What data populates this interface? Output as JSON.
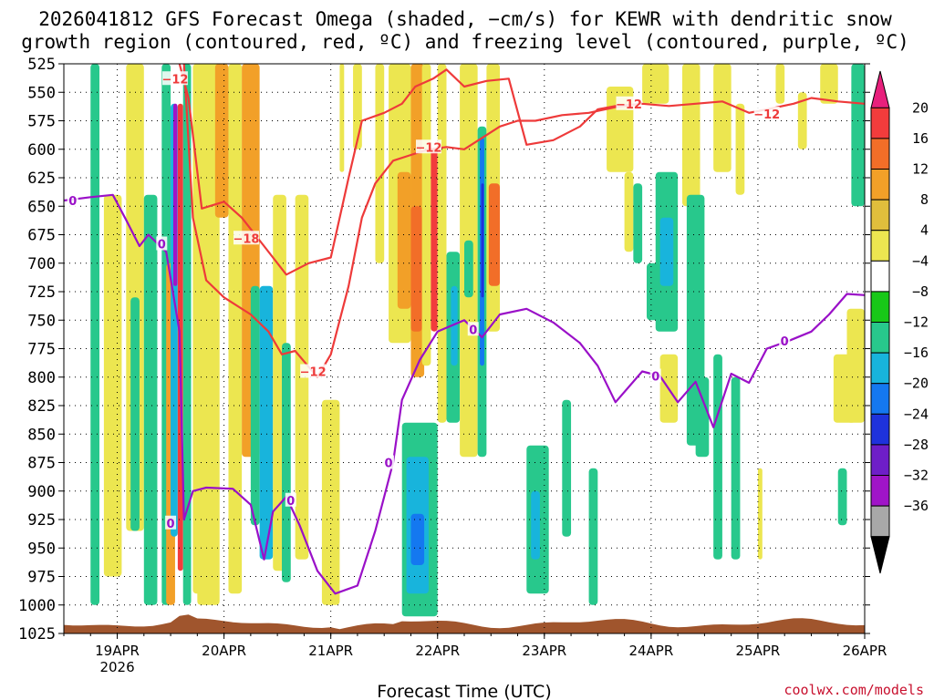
{
  "chart_data": {
    "type": "heatmap",
    "title_line1": "2026041812 GFS Forecast Omega (shaded, −cm/s) for KEWR with dendritic snow",
    "title_line2": "growth region (contoured, red, ºC) and freezing level (contoured, purple, ºC)",
    "xlabel": "Forecast Time (UTC)",
    "credit": "coolwx.com/models",
    "y_axis": {
      "variable": "pressure (hPa)",
      "ylim": [
        1025,
        525
      ],
      "ticks": [
        525,
        550,
        575,
        600,
        625,
        650,
        675,
        700,
        725,
        750,
        775,
        800,
        825,
        850,
        875,
        900,
        925,
        950,
        975,
        1000,
        1025
      ]
    },
    "x_axis": {
      "unit": "hours from 2026-04-18 12Z",
      "xlim": [
        0,
        180
      ],
      "ticks": [
        {
          "hour": 12,
          "label": "19APR",
          "sublabel": "2026"
        },
        {
          "hour": 36,
          "label": "20APR",
          "sublabel": ""
        },
        {
          "hour": 60,
          "label": "21APR",
          "sublabel": ""
        },
        {
          "hour": 84,
          "label": "22APR",
          "sublabel": ""
        },
        {
          "hour": 108,
          "label": "23APR",
          "sublabel": ""
        },
        {
          "hour": 132,
          "label": "24APR",
          "sublabel": ""
        },
        {
          "hour": 156,
          "label": "25APR",
          "sublabel": ""
        },
        {
          "hour": 180,
          "label": "26APR",
          "sublabel": ""
        }
      ]
    },
    "colorbar": {
      "labels": [
        "20",
        "16",
        "12",
        "8",
        "4",
        "−4",
        "−8",
        "−12",
        "−16",
        "−20",
        "−24",
        "−28",
        "−32",
        "−36"
      ],
      "colors": [
        "#e8207c",
        "#f23c3c",
        "#f26e28",
        "#f2a028",
        "#e0be3c",
        "#ece650",
        "#ffffff",
        "#18c818",
        "#28c88c",
        "#18b4dc",
        "#1478f0",
        "#1e32dc",
        "#6e1ec8",
        "#a014c8",
        "#a8a8a8",
        "#000000"
      ]
    },
    "freezing_level_0C": [
      [
        0,
        645
      ],
      [
        6,
        642
      ],
      [
        11,
        640
      ],
      [
        14,
        662
      ],
      [
        17,
        685
      ],
      [
        19,
        675
      ],
      [
        23,
        690
      ],
      [
        26,
        760
      ],
      [
        27,
        925
      ],
      [
        29,
        900
      ],
      [
        32,
        897
      ],
      [
        38,
        898
      ],
      [
        42,
        912
      ],
      [
        45,
        960
      ],
      [
        47,
        918
      ],
      [
        50,
        905
      ],
      [
        53,
        930
      ],
      [
        57,
        970
      ],
      [
        61,
        990
      ],
      [
        66,
        983
      ],
      [
        70,
        935
      ],
      [
        74,
        875
      ],
      [
        76,
        820
      ],
      [
        80,
        785
      ],
      [
        84,
        760
      ],
      [
        90,
        750
      ],
      [
        94,
        765
      ],
      [
        98,
        745
      ],
      [
        104,
        740
      ],
      [
        110,
        752
      ],
      [
        116,
        770
      ],
      [
        120,
        790
      ],
      [
        124,
        822
      ],
      [
        130,
        795
      ],
      [
        134,
        799
      ],
      [
        138,
        822
      ],
      [
        142,
        804
      ],
      [
        146,
        844
      ],
      [
        150,
        797
      ],
      [
        154,
        805
      ],
      [
        158,
        775
      ],
      [
        163,
        768
      ],
      [
        168,
        760
      ],
      [
        172,
        745
      ],
      [
        176,
        727
      ],
      [
        180,
        728
      ]
    ],
    "dgz_-12C_upper": [
      [
        26,
        525
      ],
      [
        28,
        555
      ],
      [
        31,
        652
      ],
      [
        36,
        646
      ],
      [
        40,
        660
      ],
      [
        43,
        675
      ],
      [
        45,
        685
      ],
      [
        50,
        710
      ],
      [
        55,
        700
      ],
      [
        60,
        695
      ],
      [
        64,
        625
      ],
      [
        67,
        575
      ],
      [
        72,
        568
      ],
      [
        76,
        560
      ],
      [
        79,
        545
      ],
      [
        83,
        538
      ],
      [
        86,
        530
      ],
      [
        90,
        545
      ],
      [
        95,
        540
      ],
      [
        100,
        538
      ],
      [
        104,
        596
      ],
      [
        110,
        592
      ],
      [
        116,
        580
      ],
      [
        120,
        565
      ],
      [
        124,
        562
      ],
      [
        130,
        560
      ],
      [
        136,
        562
      ],
      [
        142,
        560
      ],
      [
        148,
        558
      ],
      [
        154,
        568
      ],
      [
        158,
        565
      ],
      [
        164,
        560
      ],
      [
        168,
        555
      ],
      [
        174,
        558
      ],
      [
        180,
        560
      ]
    ],
    "dgz_-12C_lower": [
      [
        27,
        525
      ],
      [
        29,
        660
      ],
      [
        32,
        715
      ],
      [
        36,
        730
      ],
      [
        42,
        745
      ],
      [
        46,
        760
      ],
      [
        49,
        780
      ],
      [
        52,
        777
      ],
      [
        57,
        800
      ],
      [
        60,
        780
      ],
      [
        64,
        720
      ],
      [
        67,
        660
      ],
      [
        70,
        630
      ],
      [
        74,
        610
      ],
      [
        78,
        605
      ],
      [
        82,
        600
      ],
      [
        86,
        598
      ],
      [
        90,
        600
      ],
      [
        94,
        590
      ],
      [
        98,
        580
      ],
      [
        102,
        575
      ],
      [
        106,
        575
      ],
      [
        112,
        570
      ],
      [
        118,
        568
      ],
      [
        124,
        563
      ],
      [
        130,
        560
      ]
    ],
    "contour_labels": [
      {
        "text": "0",
        "color": "purple"
      },
      {
        "text": "0",
        "color": "purple"
      },
      {
        "text": "0",
        "color": "purple"
      },
      {
        "text": "0",
        "color": "purple"
      },
      {
        "text": "0",
        "color": "purple"
      },
      {
        "text": "0",
        "color": "purple"
      },
      {
        "text": "0",
        "color": "purple"
      },
      {
        "text": "0",
        "color": "purple"
      },
      {
        "text": "−12",
        "color": "red"
      },
      {
        "text": "−18",
        "color": "red"
      },
      {
        "text": "−12",
        "color": "red"
      },
      {
        "text": "−12",
        "color": "red"
      },
      {
        "text": "−12",
        "color": "red"
      },
      {
        "text": "−12",
        "color": "red"
      }
    ],
    "omega_features": [
      {
        "h0": 6,
        "h1": 8,
        "p0": 520,
        "p1": 1000,
        "value": -8
      },
      {
        "h0": 9,
        "h1": 13,
        "p0": 640,
        "p1": 975,
        "value": 6
      },
      {
        "h0": 14,
        "h1": 18,
        "p0": 525,
        "p1": 935,
        "value": 5
      },
      {
        "h0": 15,
        "h1": 17,
        "p0": 730,
        "p1": 935,
        "value": -8
      },
      {
        "h0": 18,
        "h1": 21,
        "p0": 640,
        "p1": 1000,
        "value": -8
      },
      {
        "h0": 22,
        "h1": 24,
        "p0": 525,
        "p1": 1000,
        "value": -8
      },
      {
        "h0": 23,
        "h1": 25,
        "p0": 700,
        "p1": 1000,
        "value": 10
      },
      {
        "h0": 24,
        "h1": 25.6,
        "p0": 560,
        "p1": 940,
        "value": -14
      },
      {
        "h0": 24.6,
        "h1": 25.5,
        "p0": 560,
        "p1": 720,
        "value": -30
      },
      {
        "h0": 25.6,
        "h1": 26.8,
        "p0": 560,
        "p1": 970,
        "value": 16
      },
      {
        "h0": 26.8,
        "h1": 28.6,
        "p0": 525,
        "p1": 1000,
        "value": -8
      },
      {
        "h0": 29,
        "h1": 31,
        "p0": 525,
        "p1": 990,
        "value": 5
      },
      {
        "h0": 30,
        "h1": 35,
        "p0": 525,
        "p1": 1000,
        "value": 6
      },
      {
        "h0": 34,
        "h1": 37,
        "p0": 525,
        "p1": 660,
        "value": 10
      },
      {
        "h0": 37,
        "h1": 40,
        "p0": 525,
        "p1": 990,
        "value": 6
      },
      {
        "h0": 40,
        "h1": 44,
        "p0": 525,
        "p1": 870,
        "value": 8
      },
      {
        "h0": 42,
        "h1": 44,
        "p0": 720,
        "p1": 930,
        "value": -8
      },
      {
        "h0": 44,
        "h1": 47,
        "p0": 720,
        "p1": 960,
        "value": -12
      },
      {
        "h0": 47,
        "h1": 50,
        "p0": 640,
        "p1": 970,
        "value": 5
      },
      {
        "h0": 49,
        "h1": 51,
        "p0": 770,
        "p1": 980,
        "value": -8
      },
      {
        "h0": 52,
        "h1": 55,
        "p0": 640,
        "p1": 960,
        "value": 5
      },
      {
        "h0": 58,
        "h1": 62,
        "p0": 820,
        "p1": 1000,
        "value": 5
      },
      {
        "h0": 62,
        "h1": 63,
        "p0": 525,
        "p1": 620,
        "value": 5
      },
      {
        "h0": 65,
        "h1": 67,
        "p0": 525,
        "p1": 600,
        "value": 5
      },
      {
        "h0": 70,
        "h1": 72,
        "p0": 525,
        "p1": 700,
        "value": 5
      },
      {
        "h0": 73,
        "h1": 78,
        "p0": 525,
        "p1": 770,
        "value": 6
      },
      {
        "h0": 75,
        "h1": 78,
        "p0": 620,
        "p1": 740,
        "value": 10
      },
      {
        "h0": 78,
        "h1": 81,
        "p0": 525,
        "p1": 800,
        "value": 10
      },
      {
        "h0": 78,
        "h1": 80.5,
        "p0": 650,
        "p1": 760,
        "value": 14
      },
      {
        "h0": 80.5,
        "h1": 82.5,
        "p0": 525,
        "p1": 790,
        "value": 6
      },
      {
        "h0": 82.5,
        "h1": 84,
        "p0": 600,
        "p1": 760,
        "value": 17
      },
      {
        "h0": 84,
        "h1": 86,
        "p0": 525,
        "p1": 840,
        "value": 5
      },
      {
        "h0": 76,
        "h1": 84,
        "p0": 840,
        "p1": 1010,
        "value": -8
      },
      {
        "h0": 77,
        "h1": 82,
        "p0": 870,
        "p1": 990,
        "value": -12
      },
      {
        "h0": 78,
        "h1": 81,
        "p0": 920,
        "p1": 965,
        "value": -16
      },
      {
        "h0": 86,
        "h1": 89,
        "p0": 690,
        "p1": 840,
        "value": -8
      },
      {
        "h0": 87,
        "h1": 88.5,
        "p0": 720,
        "p1": 790,
        "value": -12
      },
      {
        "h0": 89,
        "h1": 93,
        "p0": 525,
        "p1": 870,
        "value": 5
      },
      {
        "h0": 90,
        "h1": 92,
        "p0": 680,
        "p1": 730,
        "value": -8
      },
      {
        "h0": 93,
        "h1": 95,
        "p0": 580,
        "p1": 870,
        "value": -8
      },
      {
        "h0": 93.5,
        "h1": 94.5,
        "p0": 590,
        "p1": 790,
        "value": -16
      },
      {
        "h0": 93.8,
        "h1": 94.4,
        "p0": 630,
        "p1": 730,
        "value": -22
      },
      {
        "h0": 95,
        "h1": 98,
        "p0": 525,
        "p1": 760,
        "value": 6
      },
      {
        "h0": 95.5,
        "h1": 98,
        "p0": 630,
        "p1": 720,
        "value": 12
      },
      {
        "h0": 104,
        "h1": 109,
        "p0": 860,
        "p1": 990,
        "value": -8
      },
      {
        "h0": 105,
        "h1": 107,
        "p0": 900,
        "p1": 960,
        "value": -12
      },
      {
        "h0": 112,
        "h1": 114,
        "p0": 820,
        "p1": 940,
        "value": -8
      },
      {
        "h0": 118,
        "h1": 120,
        "p0": 880,
        "p1": 1000,
        "value": -8
      },
      {
        "h0": 122,
        "h1": 128,
        "p0": 545,
        "p1": 620,
        "value": 5
      },
      {
        "h0": 126,
        "h1": 128,
        "p0": 620,
        "p1": 690,
        "value": 5
      },
      {
        "h0": 128,
        "h1": 130,
        "p0": 630,
        "p1": 700,
        "value": -8
      },
      {
        "h0": 130,
        "h1": 136,
        "p0": 525,
        "p1": 560,
        "value": 5
      },
      {
        "h0": 131,
        "h1": 136,
        "p0": 700,
        "p1": 750,
        "value": -8
      },
      {
        "h0": 133,
        "h1": 138,
        "p0": 620,
        "p1": 760,
        "value": -8
      },
      {
        "h0": 134,
        "h1": 137,
        "p0": 660,
        "p1": 720,
        "value": -12
      },
      {
        "h0": 134,
        "h1": 138,
        "p0": 780,
        "p1": 840,
        "value": 5
      },
      {
        "h0": 139,
        "h1": 143,
        "p0": 525,
        "p1": 650,
        "value": 5
      },
      {
        "h0": 140,
        "h1": 144,
        "p0": 640,
        "p1": 860,
        "value": -8
      },
      {
        "h0": 142,
        "h1": 145,
        "p0": 800,
        "p1": 870,
        "value": -8
      },
      {
        "h0": 146,
        "h1": 150,
        "p0": 525,
        "p1": 620,
        "value": 5
      },
      {
        "h0": 146,
        "h1": 148,
        "p0": 780,
        "p1": 960,
        "value": -8
      },
      {
        "h0": 150,
        "h1": 152,
        "p0": 800,
        "p1": 960,
        "value": -8
      },
      {
        "h0": 151,
        "h1": 153,
        "p0": 560,
        "p1": 640,
        "value": 5
      },
      {
        "h0": 156,
        "h1": 157,
        "p0": 880,
        "p1": 960,
        "value": 5
      },
      {
        "h0": 160,
        "h1": 162,
        "p0": 525,
        "p1": 560,
        "value": 5
      },
      {
        "h0": 165,
        "h1": 167,
        "p0": 550,
        "p1": 600,
        "value": 5
      },
      {
        "h0": 170,
        "h1": 174,
        "p0": 525,
        "p1": 560,
        "value": 5
      },
      {
        "h0": 173,
        "h1": 178,
        "p0": 780,
        "p1": 840,
        "value": 5
      },
      {
        "h0": 174,
        "h1": 176,
        "p0": 880,
        "p1": 930,
        "value": -8
      },
      {
        "h0": 176,
        "h1": 180,
        "p0": 740,
        "p1": 840,
        "value": 6
      },
      {
        "h0": 177,
        "h1": 180,
        "p0": 525,
        "p1": 650,
        "value": -8
      }
    ],
    "terrain": {
      "color": "#a0552d",
      "surface_pressure_hPa": 1016
    }
  }
}
